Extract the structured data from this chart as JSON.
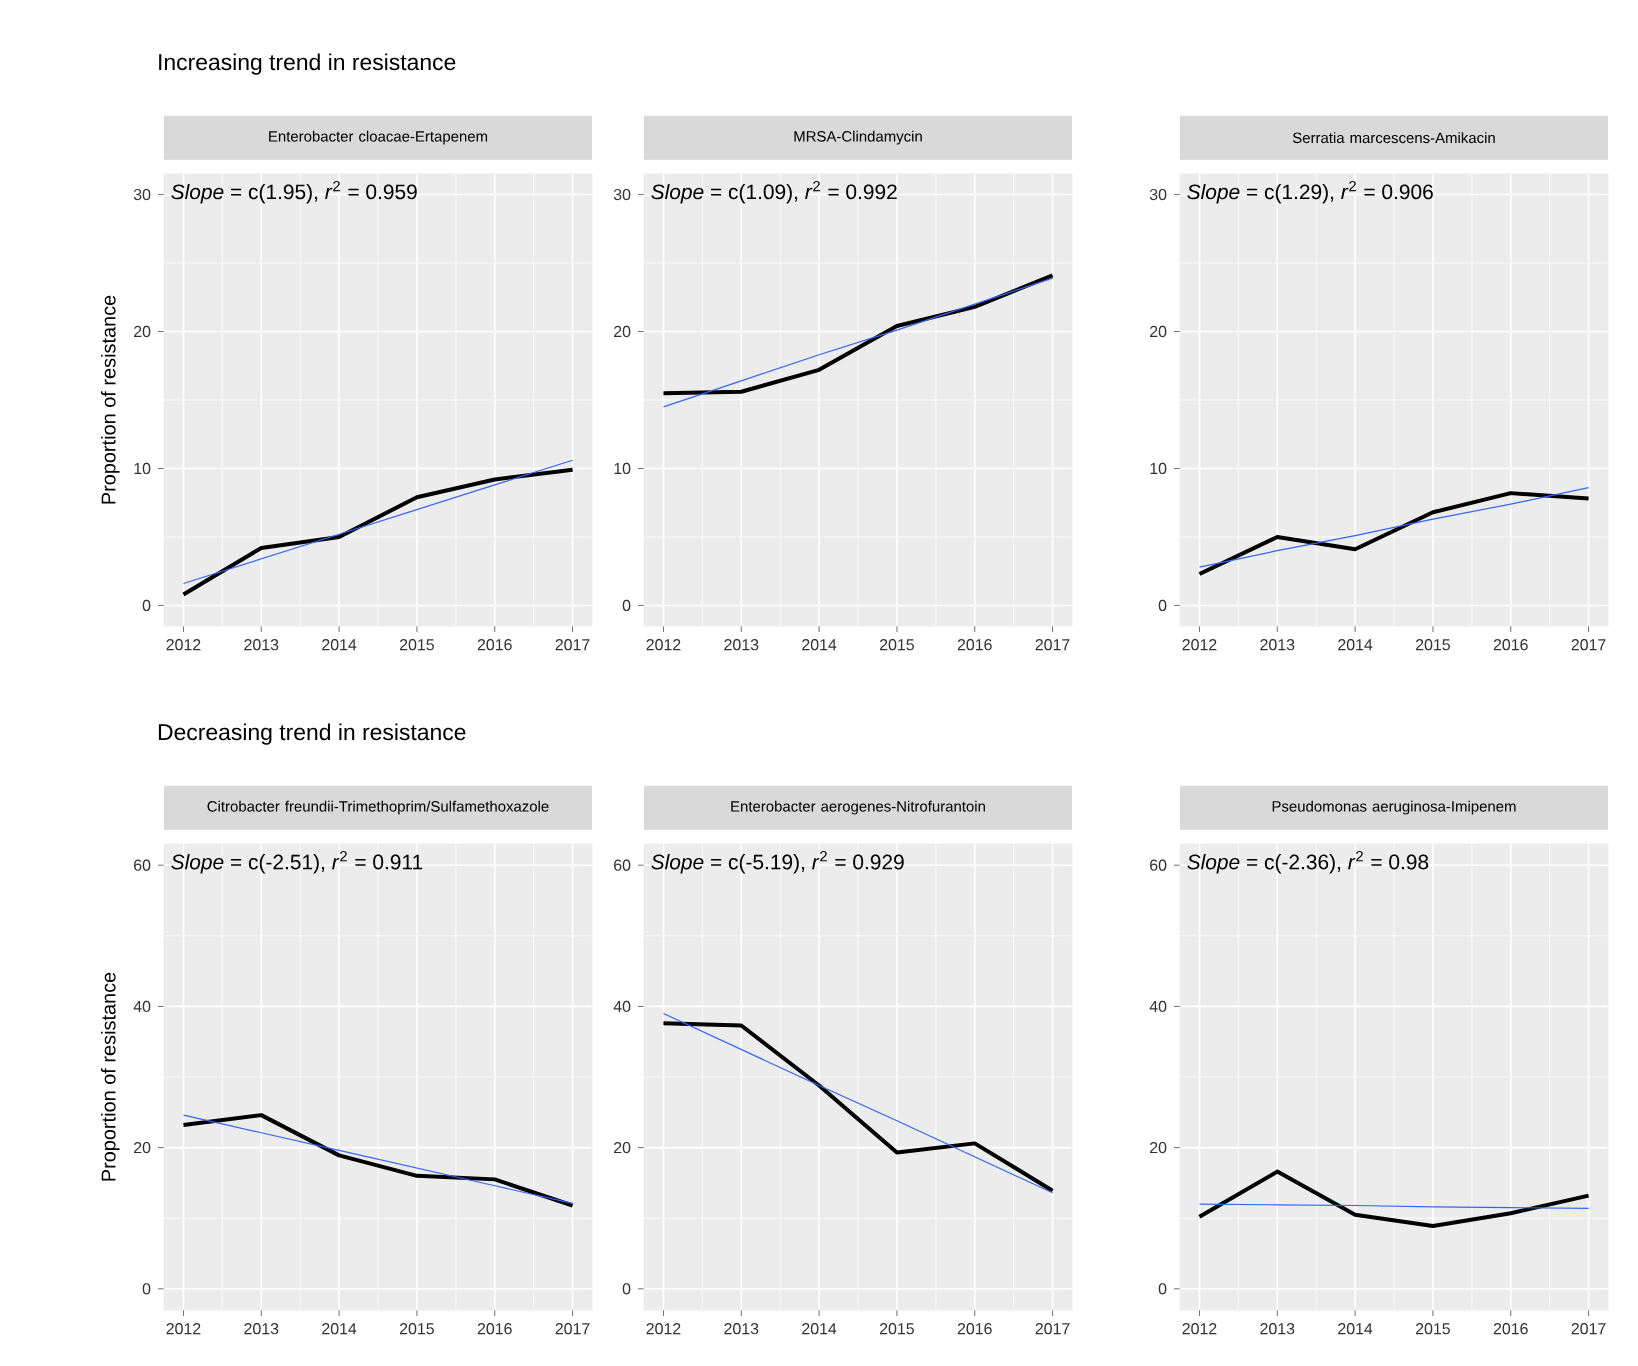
{
  "chart_data": [
    {
      "type": "line",
      "title": "Increasing trend in resistance",
      "subtitle": "Enterobacter cloacae-Ertapenem",
      "ylabel": "Proportion of resistance",
      "annotations": [
        "*Slope* = c(1.95),  *r*$^{2}$ = 0.959"
      ],
      "x": [
        2012,
        2013,
        2014,
        2015,
        2016,
        2017
      ],
      "xlim": [
        2011.75,
        2017.25
      ],
      "ylim": [
        -1.5,
        31.5
      ],
      "xticks": [
        2012,
        2013,
        2014,
        2015,
        2016,
        2017
      ],
      "yticks": [
        0,
        10,
        20,
        30
      ],
      "grid": true,
      "marker": "none",
      "line_style": "solid",
      "series": [
        {
          "color": "#000000",
          "values": [
            0.8,
            4.2,
            5.0,
            7.9,
            9.2,
            9.9
          ]
        },
        {
          "type": "line",
          "color": "#3366ff",
          "values": [
            1.6,
            3.4,
            5.2,
            7.0,
            8.8,
            10.6
          ]
        }
      ]
    },
    {
      "type": "line",
      "subtitle": "MRSA-Clindamycin",
      "annotations": [
        "*Slope* = c(1.09),  *r*$^{2}$ = 0.992"
      ],
      "x": [
        2012,
        2013,
        2014,
        2015,
        2016,
        2017
      ],
      "xlim": [
        2011.75,
        2017.25
      ],
      "ylim": [
        -1.5,
        31.5
      ],
      "xticks": [
        2012,
        2013,
        2014,
        2015,
        2016,
        2017
      ],
      "yticks": [
        0,
        10,
        20,
        30
      ],
      "grid": true,
      "marker": "none",
      "line_style": "solid",
      "series": [
        {
          "color": "#000000",
          "values": [
            15.5,
            15.6,
            17.2,
            20.4,
            21.8,
            24.1
          ]
        },
        {
          "type": "line",
          "color": "#3366ff",
          "values": [
            14.5,
            16.4,
            18.3,
            20.1,
            22.0,
            23.9
          ]
        }
      ]
    },
    {
      "type": "line",
      "subtitle": "Serratia marcescens-Amikacin",
      "annotations": [
        "*Slope* = c(1.29),  *r*$^{2}$ = 0.906"
      ],
      "x": [
        2012,
        2013,
        2014,
        2015,
        2016,
        2017
      ],
      "xlim": [
        2011.75,
        2017.25
      ],
      "ylim": [
        -1.5,
        31.5
      ],
      "xticks": [
        2012,
        2013,
        2014,
        2015,
        2016,
        2017
      ],
      "yticks": [
        0,
        10,
        20,
        30
      ],
      "grid": true,
      "marker": "none",
      "line_style": "solid",
      "series": [
        {
          "color": "#000000",
          "values": [
            2.3,
            5.0,
            4.1,
            6.8,
            8.2,
            7.8
          ]
        },
        {
          "type": "line",
          "color": "#3366ff",
          "values": [
            2.8,
            4.0,
            5.1,
            6.3,
            7.4,
            8.6
          ]
        }
      ]
    },
    {
      "type": "line",
      "title": "Decreasing trend in resistance",
      "subtitle": "Citrobacter freundii-Trimethoprim/Sulfamethoxazole",
      "ylabel": "Proportion of resistance",
      "annotations": [
        "*Slope* = c(-2.51),  *r*$^{2}$ = 0.911"
      ],
      "x": [
        2012,
        2013,
        2014,
        2015,
        2016,
        2017
      ],
      "xlim": [
        2011.75,
        2017.25
      ],
      "ylim": [
        -3,
        63
      ],
      "xticks": [
        2012,
        2013,
        2014,
        2015,
        2016,
        2017
      ],
      "yticks": [
        0,
        20,
        40,
        60
      ],
      "grid": true,
      "marker": "none",
      "line_style": "solid",
      "series": [
        {
          "color": "#000000",
          "values": [
            23.2,
            24.6,
            18.9,
            16.0,
            15.5,
            11.8
          ]
        },
        {
          "type": "line",
          "color": "#3366ff",
          "values": [
            24.6,
            22.1,
            19.6,
            17.1,
            14.6,
            12.1
          ]
        }
      ]
    },
    {
      "type": "line",
      "subtitle": "Enterobacter aerogenes-Nitrofurantoin",
      "annotations": [
        "*Slope* = c(-5.19),  *r*$^{2}$ = 0.929"
      ],
      "x": [
        2012,
        2013,
        2014,
        2015,
        2016,
        2017
      ],
      "xlim": [
        2011.75,
        2017.25
      ],
      "ylim": [
        -3,
        63
      ],
      "xticks": [
        2012,
        2013,
        2014,
        2015,
        2016,
        2017
      ],
      "yticks": [
        0,
        20,
        40,
        60
      ],
      "grid": true,
      "marker": "none",
      "line_style": "solid",
      "series": [
        {
          "color": "#000000",
          "values": [
            37.6,
            37.3,
            28.8,
            19.3,
            20.6,
            13.9
          ]
        },
        {
          "type": "line",
          "color": "#3366ff",
          "values": [
            39.0,
            33.9,
            28.8,
            23.8,
            18.7,
            13.6
          ]
        }
      ]
    },
    {
      "type": "line",
      "subtitle": "Pseudomonas aeruginosa-Imipenem",
      "annotations": [
        "*Slope* = c(-2.36),  *r*$^{2}$ = 0.98"
      ],
      "x": [
        2012,
        2013,
        2014,
        2015,
        2016,
        2017
      ],
      "xlim": [
        2011.75,
        2017.25
      ],
      "ylim": [
        -3,
        63
      ],
      "xticks": [
        2012,
        2013,
        2014,
        2015,
        2016,
        2017
      ],
      "yticks": [
        0,
        20,
        40,
        60
      ],
      "grid": true,
      "marker": "none",
      "line_style": "solid",
      "series": [
        {
          "color": "#000000",
          "values": [
            10.2,
            16.6,
            10.5,
            8.9,
            10.7,
            13.2
          ]
        },
        {
          "type": "line",
          "color": "#3366ff",
          "values": [
            12.0,
            11.9,
            11.8,
            11.6,
            11.5,
            11.4
          ]
        }
      ]
    }
  ]
}
